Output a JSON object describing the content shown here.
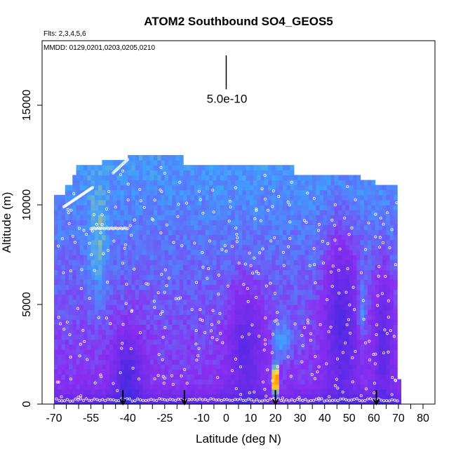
{
  "chart_data": {
    "type": "heatmap",
    "title": "ATOM2 Southbound SO4_GEOS5",
    "flights_label": "Flts: 2,3,4,5,6",
    "dates_label": "MMDD: 0129,0201,0203,0205,0210",
    "xlabel": "Latitude (deg N)",
    "ylabel": "Altitude (m)",
    "xlim": [
      -70,
      80
    ],
    "ylim": [
      0,
      18000
    ],
    "x_ticks": [
      "-70",
      "-55",
      "-40",
      "-25",
      "-10",
      "0",
      "10",
      "20",
      "30",
      "40",
      "50",
      "60",
      "70",
      "80"
    ],
    "x_tick_values": [
      -70,
      -55,
      -40,
      -25,
      -10,
      0,
      10,
      20,
      30,
      40,
      50,
      60,
      70,
      80
    ],
    "x_minor_ticks": [
      -65,
      -60,
      -50,
      -45,
      -35,
      -30,
      -20,
      -15,
      -5,
      5,
      15,
      25,
      35,
      45,
      55,
      65,
      75
    ],
    "y_ticks": [
      "0",
      "5000",
      "10000",
      "15000"
    ],
    "y_tick_values": [
      0,
      5000,
      10000,
      15000
    ],
    "scale_bar_label": "5.0e-10",
    "scale_bar_x": 0,
    "scale_bar_range": [
      15800,
      17500
    ],
    "arrow_latitudes": [
      -42,
      -17,
      20,
      61
    ],
    "colors": {
      "background_high": "#7a2ee6",
      "low_values": "#1a1ad0",
      "mid_values": "#3fa0ff",
      "high_values": "#ffe030",
      "peak_values": "#cc0000",
      "flight_track_points": "#ffffff"
    },
    "grid": false,
    "colorscale": [
      "#0a0ab0",
      "#2a2ad8",
      "#5a2ae6",
      "#8a2ef0",
      "#3fa0ff",
      "#ffe030",
      "#ff7b00",
      "#cc0000"
    ],
    "field_extent": {
      "lat": [
        -70,
        71
      ],
      "alt": [
        0,
        12500
      ]
    }
  }
}
